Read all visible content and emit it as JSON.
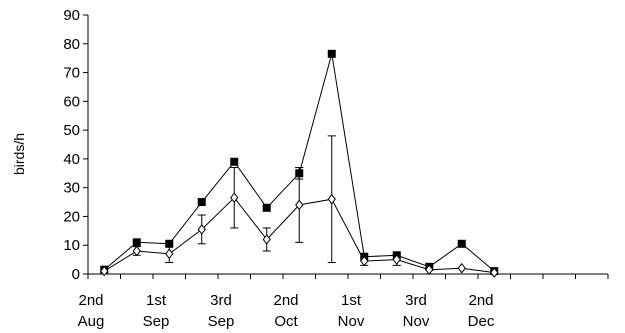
{
  "chart_data": {
    "type": "line",
    "title": "",
    "xlabel": "",
    "ylabel": "birds/h",
    "ylim": [
      0,
      90
    ],
    "yticks": [
      0,
      10,
      20,
      30,
      40,
      50,
      60,
      70,
      80,
      90
    ],
    "x_tick_labels": [
      [
        "2nd",
        "Aug"
      ],
      [
        "1st",
        "Sep"
      ],
      [
        "3rd",
        "Sep"
      ],
      [
        "2nd",
        "Oct"
      ],
      [
        "1st",
        "Nov"
      ],
      [
        "3rd",
        "Nov"
      ],
      [
        "2nd",
        "Dec"
      ]
    ],
    "n_periods": 16,
    "grid": false,
    "legend": "none",
    "series": [
      {
        "marker": "filled-square",
        "color": "#000000",
        "values": [
          1.5,
          11,
          10.5,
          25,
          39,
          23,
          35,
          76.5,
          6,
          6.5,
          2.5,
          10.5,
          1
        ],
        "errors": [
          null,
          null,
          null,
          null,
          null,
          null,
          2,
          null,
          null,
          null,
          null,
          null,
          null
        ]
      },
      {
        "marker": "open-diamond",
        "color": "#000000",
        "values": [
          1,
          8,
          7,
          15.5,
          26.5,
          12,
          24,
          26,
          4.5,
          5,
          1.5,
          2,
          0.5
        ],
        "errors": [
          null,
          1.5,
          3,
          5,
          10.5,
          4,
          13,
          22,
          1.5,
          2,
          null,
          null,
          null
        ]
      }
    ],
    "x_positions": [
      0,
      1,
      2,
      3,
      4,
      5,
      6,
      7,
      8,
      9,
      10,
      11,
      12
    ]
  }
}
